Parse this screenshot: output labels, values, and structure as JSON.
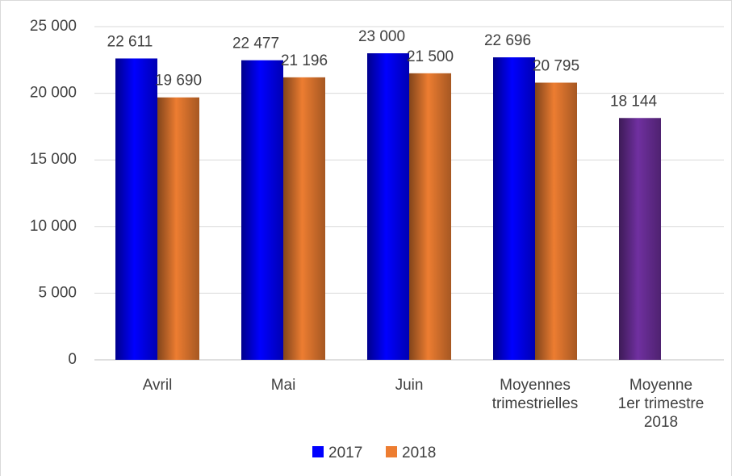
{
  "chart_data": {
    "type": "bar",
    "categories": [
      "Avril",
      "Mai",
      "Juin",
      "Moyennes trimestrielles",
      "Moyenne 1er trimestre 2018"
    ],
    "series": [
      {
        "name": "2017",
        "color": "#0000ff",
        "point_colors": [
          "#0000ff",
          "#0000ff",
          "#0000ff",
          "#0000ff",
          "#7030a0"
        ],
        "values": [
          22611,
          22477,
          23000,
          22696,
          18144
        ],
        "value_labels": [
          "22 611",
          "22 477",
          "23 000",
          "22 696",
          "18 144"
        ]
      },
      {
        "name": "2018",
        "color": "#ed7d31",
        "point_colors": [
          "#ed7d31",
          "#ed7d31",
          "#ed7d31",
          "#ed7d31",
          null
        ],
        "values": [
          19690,
          21196,
          21500,
          20795,
          null
        ],
        "value_labels": [
          "19 690",
          "21 196",
          "21 500",
          "20 795",
          null
        ]
      }
    ],
    "ylim": [
      0,
      25000
    ],
    "yticks": [
      0,
      {
        "value": 5000,
        "label": "5 000"
      },
      {
        "value": 10000,
        "label": "10 000"
      },
      {
        "value": 15000,
        "label": "15 000"
      },
      {
        "value": 20000,
        "label": "20 000"
      },
      {
        "value": 25000,
        "label": "25 000"
      }
    ],
    "grid": true,
    "legend": "bottom"
  }
}
